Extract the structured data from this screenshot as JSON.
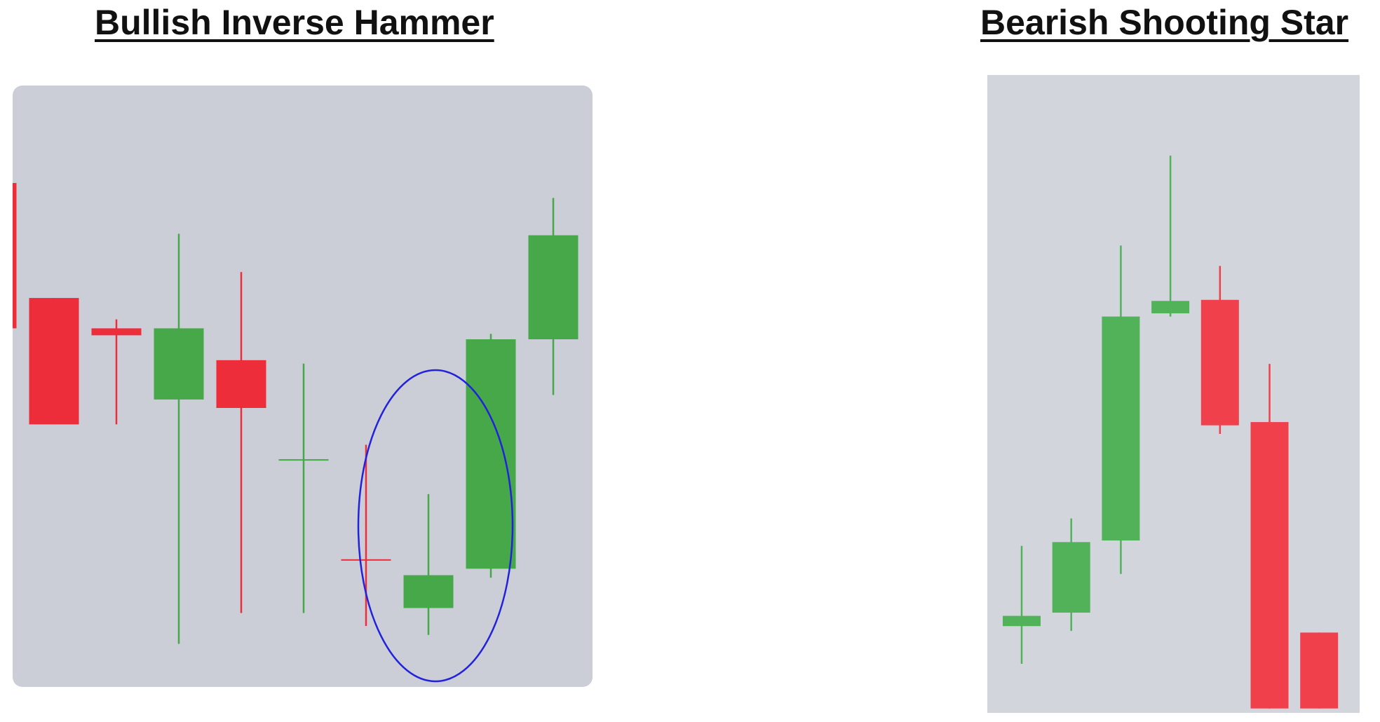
{
  "chart_data": [
    {
      "type": "candlestick",
      "title": "Bullish Inverse Hammer",
      "colors": {
        "up": "#47a84a",
        "down": "#ee2d3b",
        "background": "#cbced6",
        "highlight": "#2222dd"
      },
      "ylim": [
        0,
        100
      ],
      "candles": [
        {
          "open": 95.2,
          "high": 104.5,
          "low": 44.0,
          "close": 66.0
        },
        {
          "open": 72.1,
          "high": 72.1,
          "low": 46.7,
          "close": 46.7
        },
        {
          "open": 66.0,
          "high": 67.8,
          "low": 46.7,
          "close": 64.6
        },
        {
          "open": 51.7,
          "high": 85.0,
          "low": 2.6,
          "close": 66.0
        },
        {
          "open": 59.6,
          "high": 77.3,
          "low": 8.8,
          "close": 50.0
        },
        {
          "open": 39.6,
          "high": 58.9,
          "low": 8.8,
          "close": 39.7
        },
        {
          "open": 19.6,
          "high": 42.6,
          "low": 6.2,
          "close": 19.5
        },
        {
          "open": 9.8,
          "high": 32.7,
          "low": 4.4,
          "close": 16.4
        },
        {
          "open": 17.7,
          "high": 64.9,
          "low": 15.9,
          "close": 63.8
        },
        {
          "open": 63.8,
          "high": 92.2,
          "low": 52.6,
          "close": 84.7
        }
      ],
      "highlight_index": 7
    },
    {
      "type": "candlestick",
      "title": "Bearish Shooting Star",
      "colors": {
        "up": "#52b25a",
        "down": "#f0404c",
        "background": "#d3d5dc"
      },
      "ylim": [
        0,
        100
      ],
      "candles": [
        {
          "open": 8.7,
          "high": 23.6,
          "low": 1.7,
          "close": 10.6
        },
        {
          "open": 11.2,
          "high": 28.7,
          "low": 7.8,
          "close": 24.3
        },
        {
          "open": 24.6,
          "high": 79.4,
          "low": 18.4,
          "close": 66.2
        },
        {
          "open": 66.8,
          "high": 96.1,
          "low": 66.2,
          "close": 69.1
        },
        {
          "open": 69.3,
          "high": 75.6,
          "low": 44.4,
          "close": 46.0
        },
        {
          "open": 46.6,
          "high": 57.4,
          "low": -6.6,
          "close": -6.6
        },
        {
          "open": 7.5,
          "high": 7.5,
          "low": -6.6,
          "close": -6.6
        }
      ]
    }
  ]
}
